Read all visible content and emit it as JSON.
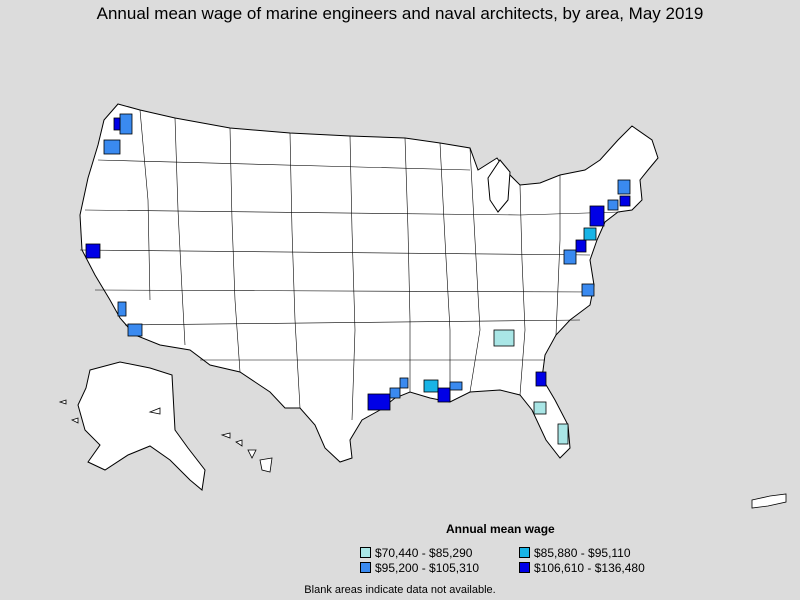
{
  "title": "Annual mean wage of marine engineers and naval architects, by area, May 2019",
  "legend": {
    "title": "Annual mean wage",
    "items": [
      {
        "label": "$70,440 - $85,290",
        "color": "#a9e6e6"
      },
      {
        "label": "$85,880 - $95,110",
        "color": "#18b4e6"
      },
      {
        "label": "$95,200 - $105,310",
        "color": "#3a8af0"
      },
      {
        "label": "$106,610 - $136,480",
        "color": "#0000e6"
      }
    ]
  },
  "note": "Blank areas indicate data not available."
}
